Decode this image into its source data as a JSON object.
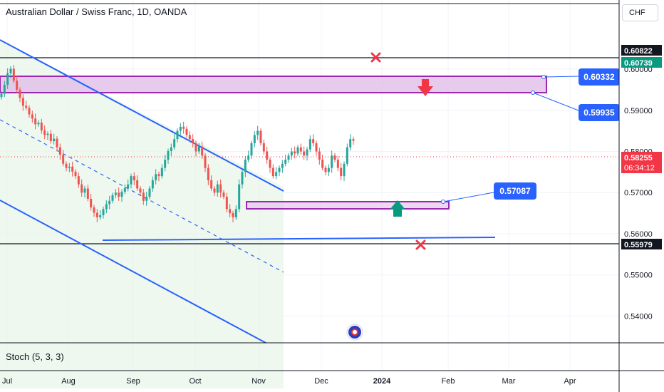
{
  "header": {
    "title": "Australian Dollar / Swiss Franc, 1D, OANDA",
    "currency_button": "CHF",
    "indicator_label": "Stoch (5, 3, 3)"
  },
  "colors": {
    "bull": "#26a69a",
    "bear": "#ef5350",
    "trend": "#2962ff",
    "zone_border": "#9c27b0",
    "zone_fill": "#e1bee7",
    "channel_fill": "#e8f5e9",
    "callout": "#2962ff",
    "current_price": "#f23645"
  },
  "chart_data": {
    "type": "candlestick",
    "symbol": "Australian Dollar / Swiss Franc",
    "timeframe": "1D",
    "ylim": [
      0.5335,
      0.6168
    ],
    "y_ticks": [
      "0.60000",
      "0.59000",
      "0.58000",
      "0.57000",
      "0.56000",
      "0.55000",
      "0.54000"
    ],
    "x_ticks": [
      "Jul",
      "Aug",
      "Sep",
      "Oct",
      "Nov",
      "Dec",
      "2024",
      "Feb",
      "Mar",
      "Apr"
    ],
    "price_tags": [
      {
        "value": "0.60822",
        "style": "dark"
      },
      {
        "value": "0.60739",
        "style": "green"
      },
      {
        "value": "0.58255",
        "style": "red",
        "countdown": "06:34:12"
      },
      {
        "value": "0.55979",
        "style": "dark"
      }
    ],
    "callouts": [
      "0.60332",
      "0.59935",
      "0.57087"
    ],
    "close_series": [
      0.594,
      0.5962,
      0.599,
      0.6001,
      0.5972,
      0.595,
      0.593,
      0.5911,
      0.5906,
      0.589,
      0.588,
      0.5866,
      0.587,
      0.5851,
      0.584,
      0.5843,
      0.5825,
      0.5831,
      0.581,
      0.5792,
      0.577,
      0.576,
      0.5763,
      0.5751,
      0.574,
      0.572,
      0.57,
      0.571,
      0.5685,
      0.5664,
      0.5651,
      0.564,
      0.5645,
      0.566,
      0.5672,
      0.568,
      0.5694,
      0.57,
      0.569,
      0.5702,
      0.5711,
      0.572,
      0.574,
      0.573,
      0.571,
      0.57,
      0.568,
      0.569,
      0.571,
      0.573,
      0.5745,
      0.574,
      0.576,
      0.578,
      0.5801,
      0.581,
      0.583,
      0.585,
      0.586,
      0.5855,
      0.584,
      0.583,
      0.582,
      0.58,
      0.5812,
      0.579,
      0.576,
      0.573,
      0.571,
      0.57,
      0.572,
      0.57,
      0.569,
      0.566,
      0.565,
      0.564,
      0.566,
      0.572,
      0.575,
      0.578,
      0.579,
      0.582,
      0.584,
      0.585,
      0.582,
      0.58,
      0.578,
      0.576,
      0.574,
      0.575,
      0.576,
      0.577,
      0.578,
      0.579,
      0.58,
      0.5795,
      0.581,
      0.58,
      0.579,
      0.5805,
      0.583,
      0.582,
      0.58,
      0.578,
      0.576,
      0.575,
      0.576,
      0.579,
      0.578,
      0.576,
      0.574,
      0.577,
      0.581,
      0.583,
      0.5826
    ]
  }
}
